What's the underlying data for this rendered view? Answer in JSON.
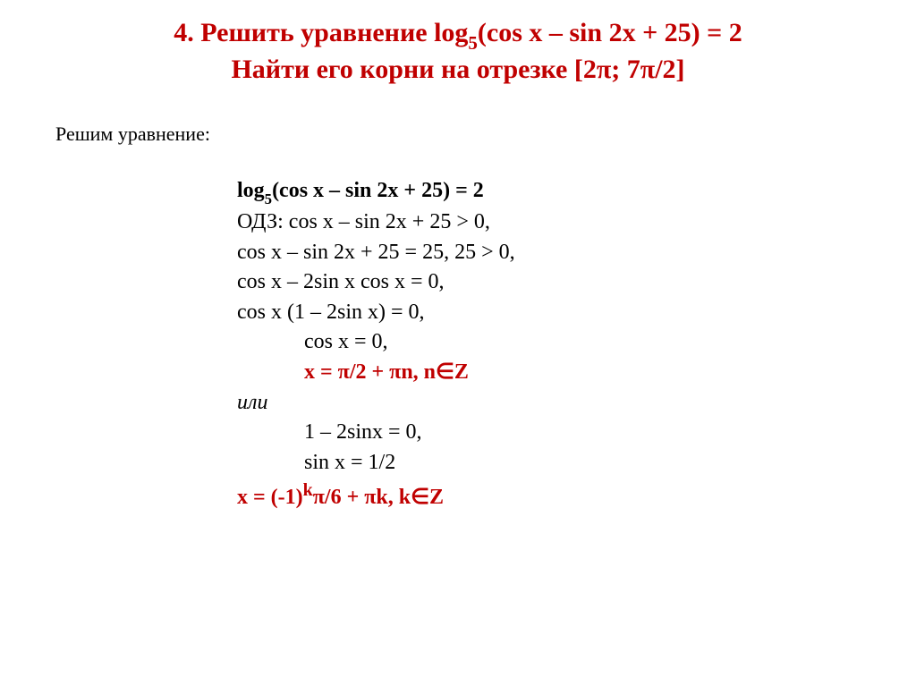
{
  "title": {
    "line1_prefix": "4. Решить уравнение ",
    "line1_eq": "log",
    "line1_sub": "5",
    "line1_rest": "(cos x – sin 2x + 25) = 2",
    "line2": "Найти его корни на отрезке [2π; 7π/2]",
    "color": "#c00000",
    "fontsize": 30
  },
  "subheading": "Решим уравнение:",
  "steps": {
    "s1_a": "log",
    "s1_sub": "5",
    "s1_b": "(cos x – sin 2x + 25) = 2",
    "s2": "ОДЗ: cos x – sin 2x + 25 > 0,",
    "s3": "cos x – sin 2x + 25 = 25, 25 > 0,",
    "s4": "cos x – 2sin x cos x = 0,",
    "s5": "cos x (1 – 2sin x) = 0,",
    "s6": "cos x = 0,",
    "s7": "x = π/2 + πn, n∈Z",
    "s8": "или",
    "s9": "1 – 2sinx = 0,",
    "s10": "sin x = 1/2",
    "s11_a": "x = (-1)",
    "s11_sup": "k",
    "s11_b": "π/6 + πk, k∈Z"
  },
  "colors": {
    "accent": "#c00000",
    "text": "#000000",
    "background": "#ffffff"
  },
  "body_fontsize": 24
}
